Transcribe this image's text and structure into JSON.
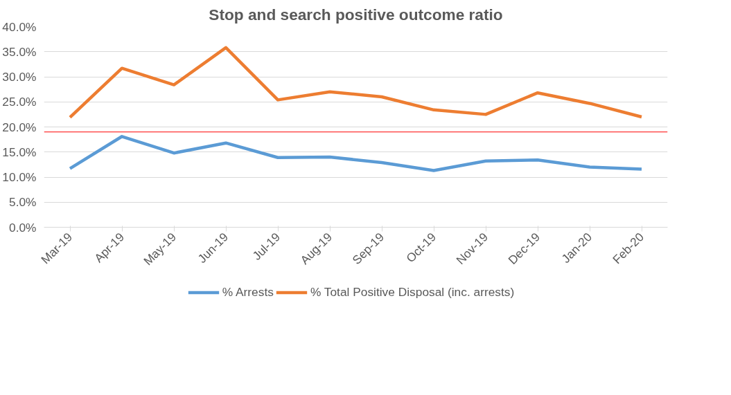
{
  "chart_data": {
    "type": "line",
    "title": "Stop and search positive outcome ratio",
    "categories": [
      "Mar-19",
      "Apr-19",
      "May-19",
      "Jun-19",
      "Jul-19",
      "Aug-19",
      "Sep-19",
      "Oct-19",
      "Nov-19",
      "Dec-19",
      "Jan-20",
      "Feb-20"
    ],
    "series": [
      {
        "name": "% Arrests",
        "color": "#5b9bd5",
        "values": [
          11.7,
          18.1,
          14.8,
          16.8,
          13.9,
          14.0,
          12.9,
          11.3,
          13.2,
          13.4,
          12.0,
          11.6
        ]
      },
      {
        "name": "% Total Positive Disposal (inc. arrests)",
        "color": "#ed7d31",
        "values": [
          21.9,
          31.7,
          28.4,
          35.8,
          25.4,
          27.0,
          26.0,
          23.4,
          22.5,
          26.8,
          24.7,
          22.0
        ]
      }
    ],
    "ylim": [
      0,
      40
    ],
    "yticks": [
      {
        "value": 0,
        "label": "0.0%"
      },
      {
        "value": 5,
        "label": "5.0%"
      },
      {
        "value": 10,
        "label": "10.0%"
      },
      {
        "value": 15,
        "label": "15.0%"
      },
      {
        "value": 20,
        "label": "20.0%"
      },
      {
        "value": 25,
        "label": "25.0%"
      },
      {
        "value": 30,
        "label": "30.0%"
      },
      {
        "value": 35,
        "label": "35.0%"
      },
      {
        "value": 40,
        "label": "40.0%"
      }
    ],
    "ref_lines": [
      {
        "axis": "y",
        "value": 19.0,
        "label": null,
        "color": "#ff0000"
      }
    ],
    "grid": "y",
    "legend": "bottom",
    "marker": "none",
    "line_style": "solid"
  }
}
